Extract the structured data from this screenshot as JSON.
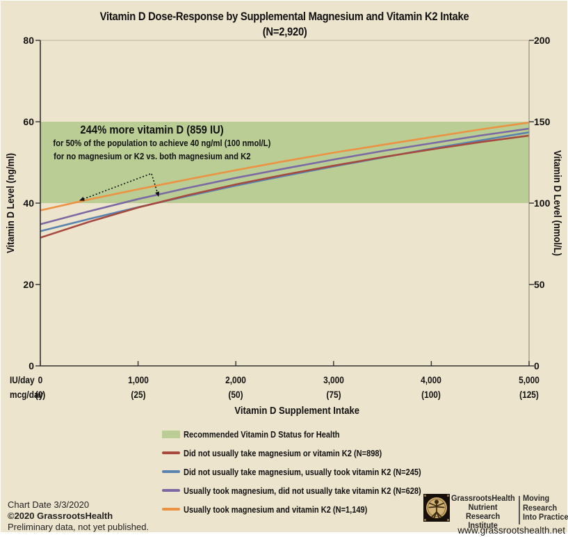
{
  "colors": {
    "background": "#EDE4CE",
    "band": "#BACD94",
    "red": "#A6493F",
    "blue": "#5B83AF",
    "purple": "#7C69A4",
    "orange": "#EC9243"
  },
  "title": {
    "line1": "Vitamin D Dose-Response by Supplemental Magnesium and Vitamin K2 Intake",
    "line2": "(N=2,920)"
  },
  "axes": {
    "y_left": {
      "label": "Vitamin D Level (ng/ml)",
      "ticks": [
        "80",
        "60",
        "40",
        "20",
        "0"
      ]
    },
    "y_right": {
      "label": "Vitamin D Level (nmol/L)",
      "ticks": [
        "200",
        "150",
        "100",
        "50",
        "0"
      ]
    },
    "x": {
      "row1_label": "IU/day",
      "row1_ticks": [
        "0",
        "1,000",
        "2,000",
        "3,000",
        "4,000",
        "5,000"
      ],
      "row2_label": "mcg/day",
      "row2_ticks": [
        "(0)",
        "(25)",
        "(50)",
        "(75)",
        "(100)",
        "(125)"
      ],
      "title": "Vitamin D Supplement Intake"
    }
  },
  "annotation": {
    "line1": "244% more vitamin D (859 IU)",
    "line2": "for 50% of the population to achieve 40 ng/ml (100 nmol/L)",
    "line3": "for no magnesium or K2 vs. both magnesium and K2"
  },
  "legend": [
    {
      "type": "band",
      "color_key": "band",
      "label": "Recommended Vitamin D Status for Health"
    },
    {
      "type": "line",
      "color_key": "red",
      "label": "Did not usually take magnesium or vitamin K2 (N=898)"
    },
    {
      "type": "line",
      "color_key": "blue",
      "label": "Did not usually take magnesium, usually took vitamin K2 (N=245)"
    },
    {
      "type": "line",
      "color_key": "purple",
      "label": "Usually took magnesium, did not usually take vitamin K2 (N=628)"
    },
    {
      "type": "line",
      "color_key": "orange",
      "label": "Usually took magnesium and vitamin K2 (N=1,149)"
    }
  ],
  "footer": {
    "date": "Chart Date 3/3/2020",
    "copyright": "©2020 GrassrootsHealth",
    "note": "Preliminary data, not yet published."
  },
  "logo": {
    "line1": "GrassrootsHealth",
    "line2": "Nutrient",
    "line3": "Research Institute",
    "tag1": "Moving",
    "tag2": "Research",
    "tag3": "Into Practice",
    "website": "www.grassrootshealth.net"
  },
  "chart_data": {
    "type": "line",
    "title": "Vitamin D Dose-Response by Supplemental Magnesium and Vitamin K2 Intake (N=2,920)",
    "xlabel": "Vitamin D Supplement Intake",
    "ylabel_left": "Vitamin D Level (ng/ml)",
    "ylabel_right": "Vitamin D Level (nmol/L)",
    "xlim_iu": [
      0,
      5000
    ],
    "xlim_mcg": [
      0,
      125
    ],
    "ylim_ng_ml": [
      0,
      80
    ],
    "ylim_nmol_l": [
      0,
      200
    ],
    "x_ticks_iu": [
      0,
      1000,
      2000,
      3000,
      4000,
      5000
    ],
    "x_ticks_mcg": [
      0,
      25,
      50,
      75,
      100,
      125
    ],
    "recommended_band_ng_ml": [
      40,
      60
    ],
    "x_iu_per_day": [
      0,
      500,
      1000,
      1500,
      2000,
      2500,
      3000,
      3500,
      4000,
      4500,
      5000
    ],
    "series": [
      {
        "name": "Did not usually take magnesium or vitamin K2 (N=898)",
        "color_key": "red",
        "values_ng_ml": [
          31.5,
          35.4,
          38.9,
          41.9,
          44.6,
          47.0,
          49.2,
          51.3,
          53.2,
          55.0,
          56.6
        ]
      },
      {
        "name": "Did not usually take magnesium, usually took vitamin K2 (N=245)",
        "color_key": "blue",
        "values_ng_ml": [
          33.1,
          36.1,
          39.0,
          41.7,
          44.3,
          46.7,
          49.0,
          51.2,
          53.4,
          55.4,
          57.4
        ]
      },
      {
        "name": "Usually took magnesium, did not usually take vitamin K2 (N=628)",
        "color_key": "purple",
        "values_ng_ml": [
          34.8,
          38.0,
          41.0,
          43.7,
          46.2,
          48.5,
          50.7,
          52.8,
          54.7,
          56.6,
          58.3
        ]
      },
      {
        "name": "Usually took magnesium and vitamin K2 (N=1,149)",
        "color_key": "orange",
        "values_ng_ml": [
          38.2,
          40.9,
          43.4,
          45.8,
          48.1,
          50.3,
          52.4,
          54.3,
          56.2,
          58.1,
          59.8
        ]
      }
    ],
    "annotation": "244% more vitamin D (859 IU) for 50% of the population to achieve 40 ng/ml (100 nmol/L) for no magnesium or K2 vs. both magnesium and K2",
    "legend_position": "bottom",
    "grid": false
  }
}
